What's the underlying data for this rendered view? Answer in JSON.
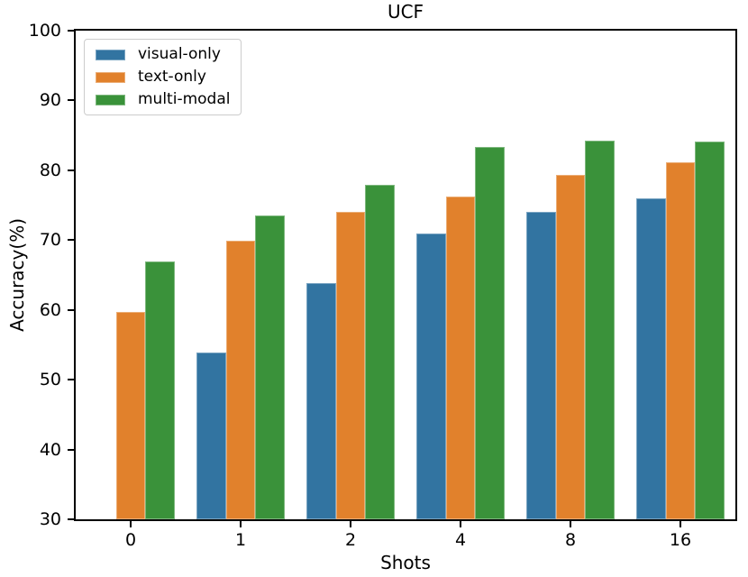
{
  "chart_data": {
    "type": "bar",
    "title": "UCF",
    "xlabel": "Shots",
    "ylabel": "Accuracy(%)",
    "categories": [
      "0",
      "1",
      "2",
      "4",
      "8",
      "16"
    ],
    "series": [
      {
        "name": "visual-only",
        "color": "#3274A1",
        "values": [
          null,
          53.9,
          63.8,
          71.0,
          74.1,
          76.0
        ]
      },
      {
        "name": "text-only",
        "color": "#E1812C",
        "values": [
          59.7,
          69.9,
          74.0,
          76.3,
          79.3,
          81.1
        ]
      },
      {
        "name": "multi-modal",
        "color": "#3A923A",
        "values": [
          67.0,
          73.5,
          77.9,
          83.4,
          84.2,
          84.1
        ]
      }
    ],
    "ylim": [
      30,
      100
    ],
    "yticks": [
      30,
      40,
      50,
      60,
      70,
      80,
      90,
      100
    ],
    "grid": false,
    "legend_position": "upper left",
    "bar_group_width_fraction": 0.8,
    "axis_color": "#000000",
    "text_color": "#000000",
    "background_color": "#ffffff"
  }
}
